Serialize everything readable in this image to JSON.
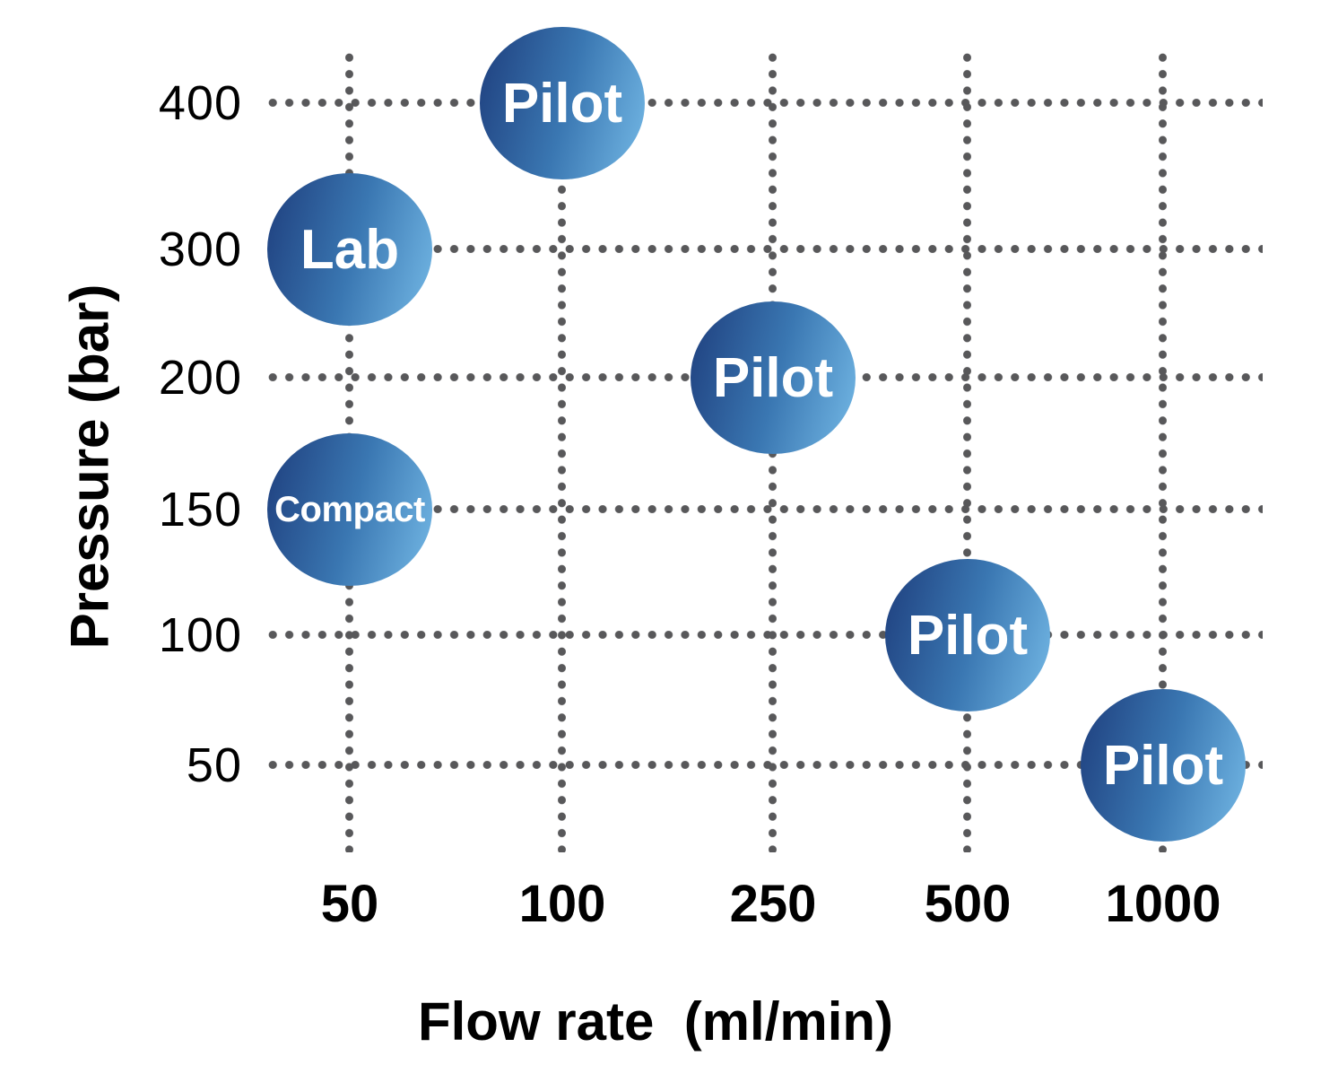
{
  "chart_data": {
    "type": "scatter",
    "subtype": "labeled-bubble-chart",
    "title": "",
    "xlabel": "Flow rate  (ml/min)",
    "ylabel": "Pressure (bar)",
    "x_ticks": [
      "50",
      "100",
      "250",
      "500",
      "1000"
    ],
    "y_ticks": [
      "400",
      "300",
      "200",
      "150",
      "100",
      "50"
    ],
    "grid": "dotted",
    "legend": "none",
    "points": [
      {
        "label": "Pilot",
        "x": 100,
        "y": 400
      },
      {
        "label": "Lab",
        "x": 50,
        "y": 300
      },
      {
        "label": "Pilot",
        "x": 250,
        "y": 200
      },
      {
        "label": "Compact",
        "x": 50,
        "y": 150
      },
      {
        "label": "Pilot",
        "x": 500,
        "y": 100
      },
      {
        "label": "Pilot",
        "x": 1000,
        "y": 50
      }
    ],
    "colors": {
      "bubble_gradient_dark": "#1e3e7d",
      "bubble_gradient_mid": "#3a77b2",
      "bubble_gradient_light": "#74b9e6",
      "bubble_text": "#ffffff",
      "grid_dot": "#58585a",
      "axis_text": "#000000",
      "background": "#ffffff"
    }
  }
}
